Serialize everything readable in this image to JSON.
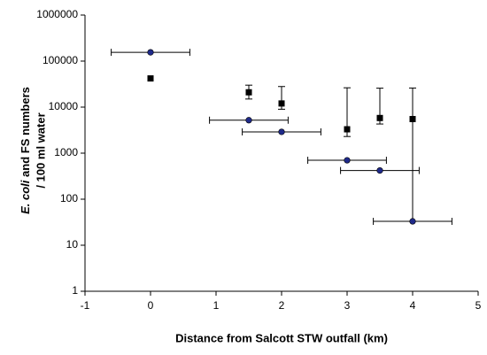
{
  "chart_data": {
    "type": "scatter",
    "xlabel": "Distance from Salcott STW outfall (km)",
    "ylabel": {
      "italic": "E. coli",
      "rest": "and FS numbers",
      "line2": "/ 100 ml water"
    },
    "log_y": true,
    "xlim": [
      -1,
      5
    ],
    "xticks": [
      -1,
      0,
      1,
      2,
      3,
      4,
      5
    ],
    "ylim": [
      1,
      1000000
    ],
    "yticks": [
      1,
      10,
      100,
      1000,
      10000,
      100000,
      1000000
    ],
    "series": [
      {
        "color": "#000000",
        "marker": "square",
        "x": [
          0,
          1.5,
          2,
          3,
          3.5,
          4
        ],
        "values": [
          42000,
          21000,
          12000,
          3300,
          5800,
          5500
        ],
        "yerr_high": [
          null,
          9000,
          16000,
          23000,
          20000,
          20500
        ],
        "yerr_low": [
          null,
          6000,
          3000,
          1000,
          1500,
          5467
        ]
      },
      {
        "color": "#1f2a8a",
        "marker": "circle",
        "x": [
          0,
          1.5,
          2,
          3,
          3.5,
          4
        ],
        "values": [
          155000,
          5200,
          2900,
          700,
          420,
          33
        ],
        "xerr": [
          0.6,
          0.6,
          0.6,
          0.6,
          0.6,
          0.6
        ]
      }
    ]
  }
}
